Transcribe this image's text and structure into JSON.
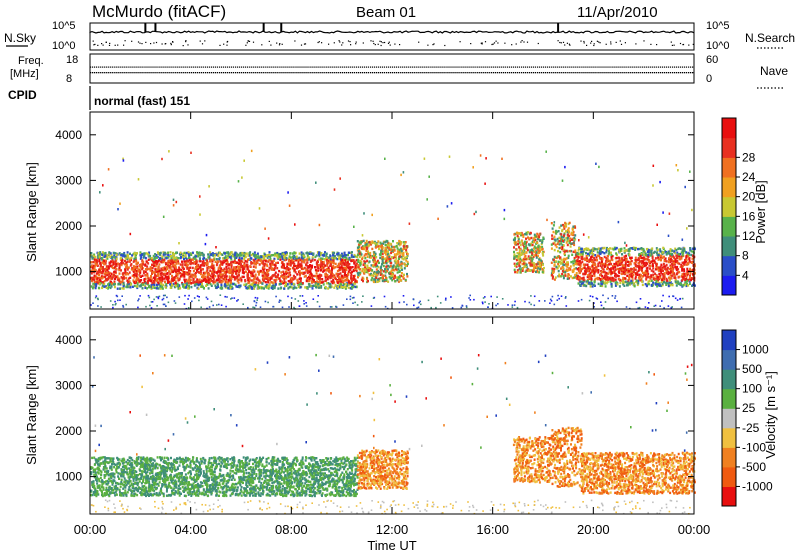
{
  "header": {
    "station": "McMurdo (fitACF)",
    "beam": "Beam 01",
    "date": "11/Apr/2010"
  },
  "strip1": {
    "left_label": "N.Sky",
    "right_label": "N.Search",
    "left_ticks": [
      "10^5",
      "10^0"
    ],
    "right_ticks": [
      "10^5",
      "10^0"
    ]
  },
  "strip2": {
    "left_label_1": "Freq.",
    "left_label_2": "[MHz]",
    "right_label": "Nave",
    "left_ticks": [
      "18",
      "8"
    ],
    "right_ticks": [
      "60",
      "0"
    ]
  },
  "cpid": {
    "label": "CPID",
    "value": "normal (fast) 151"
  },
  "chart_data": [
    {
      "type": "heatmap",
      "name": "power",
      "ylabel": "Slant Range [km]",
      "xlabel": "",
      "ylim": [
        180,
        4500
      ],
      "yticks": [
        "1000",
        "2000",
        "3000",
        "4000"
      ],
      "colorbar": {
        "title": "Power [dB]",
        "ticks": [
          "4",
          "8",
          "12",
          "16",
          "20",
          "24",
          "28"
        ],
        "colors": [
          "#1c1cf0",
          "#2a4ec8",
          "#3f8e7a",
          "#58b24a",
          "#c8c832",
          "#f0a020",
          "#f07020",
          "#e83020",
          "#e80f0f"
        ]
      },
      "bands": [
        {
          "t": [
            0,
            10.6
          ],
          "r": [
            650,
            1450
          ],
          "level": "high"
        },
        {
          "t": [
            10.6,
            12.6
          ],
          "r": [
            800,
            1700
          ],
          "level": "mid"
        },
        {
          "t": [
            16.8,
            18.0
          ],
          "r": [
            1000,
            1900
          ],
          "level": "mid"
        },
        {
          "t": [
            18.3,
            19.3
          ],
          "r": [
            850,
            2100
          ],
          "level": "mid"
        },
        {
          "t": [
            19.3,
            24.0
          ],
          "r": [
            700,
            1550
          ],
          "level": "high"
        }
      ]
    },
    {
      "type": "heatmap",
      "name": "velocity",
      "ylabel": "Slant Range [km]",
      "xlabel": "Time UT",
      "ylim": [
        180,
        4500
      ],
      "yticks": [
        "1000",
        "2000",
        "3000",
        "4000"
      ],
      "xticks": [
        "00:00",
        "04:00",
        "08:00",
        "12:00",
        "16:00",
        "20:00",
        "00:00"
      ],
      "colorbar": {
        "title": "Velocity [m s⁻¹]",
        "ticks": [
          "1000",
          "500",
          "100",
          "25",
          "-25",
          "-100",
          "-500",
          "-1000"
        ],
        "colors": [
          "#2040c0",
          "#3f6db0",
          "#3f8e7a",
          "#5ab040",
          "#c0c0c0",
          "#f0c040",
          "#f08020",
          "#f05a10",
          "#e80f0f"
        ]
      },
      "bands": [
        {
          "t": [
            0,
            10.6
          ],
          "r": [
            600,
            1450
          ],
          "level": "toward"
        },
        {
          "t": [
            10.6,
            12.6
          ],
          "r": [
            750,
            1600
          ],
          "level": "away"
        },
        {
          "t": [
            16.8,
            18.3
          ],
          "r": [
            900,
            1900
          ],
          "level": "away"
        },
        {
          "t": [
            18.3,
            19.5
          ],
          "r": [
            800,
            2100
          ],
          "level": "away"
        },
        {
          "t": [
            19.5,
            24.0
          ],
          "r": [
            650,
            1550
          ],
          "level": "away"
        }
      ]
    }
  ]
}
